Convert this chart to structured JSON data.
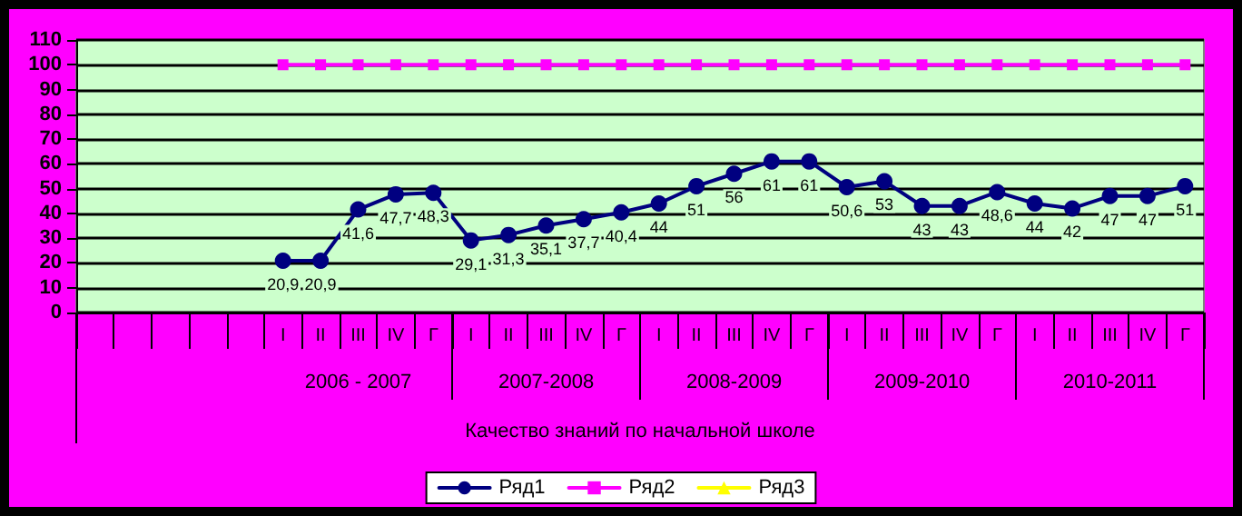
{
  "chart_data": {
    "type": "line",
    "xlabel": "Качество знаний по начальной школе",
    "categories": [
      null,
      null,
      null,
      null,
      null,
      "I",
      "II",
      "III",
      "IV",
      "Г",
      "I",
      "II",
      "III",
      "IV",
      "Г",
      "I",
      "II",
      "III",
      "IV",
      "Г",
      "I",
      "II",
      "III",
      "IV",
      "Г",
      "I",
      "II",
      "III",
      "IV",
      "Г"
    ],
    "annotations": [
      "2006 - 2007",
      "2007-2008",
      "2008-2009",
      "2009-2010",
      "2010-2011"
    ],
    "series": [
      {
        "name": "Ряд1",
        "color": "#000080",
        "marker": "circle",
        "value_labels": [
          null,
          null,
          null,
          null,
          null,
          "20,9",
          "20,9",
          "41,6",
          "47,7",
          "48,3",
          "29,1",
          "31,3",
          "35,1",
          "37,7",
          "40,4",
          "44",
          "51",
          "56",
          "61",
          "61",
          "50,6",
          "53",
          "43",
          "43",
          "48,6",
          "44",
          "42",
          "47",
          "47",
          "51"
        ],
        "values": [
          null,
          null,
          null,
          null,
          null,
          20.9,
          20.9,
          41.6,
          47.7,
          48.3,
          29.1,
          31.3,
          35.1,
          37.7,
          40.4,
          44,
          51,
          56,
          61,
          61,
          50.6,
          53,
          43,
          43,
          48.6,
          44,
          42,
          47,
          47,
          51
        ]
      },
      {
        "name": "Ряд2",
        "color": "#ff00ff",
        "marker": "square",
        "values": [
          null,
          null,
          null,
          null,
          null,
          100,
          100,
          100,
          100,
          100,
          100,
          100,
          100,
          100,
          100,
          100,
          100,
          100,
          100,
          100,
          100,
          100,
          100,
          100,
          100,
          100,
          100,
          100,
          100,
          100
        ]
      },
      {
        "name": "Ряд3",
        "color": "#ffff00",
        "marker": "triangle",
        "values": [
          null,
          null,
          null,
          null,
          null,
          null,
          null,
          null,
          null,
          null,
          null,
          null,
          null,
          null,
          null,
          null,
          null,
          null,
          null,
          null,
          null,
          null,
          null,
          null,
          null,
          null,
          null,
          null,
          null,
          null
        ]
      }
    ],
    "ylim": [
      0,
      110
    ],
    "yticks": [
      0,
      10,
      20,
      30,
      40,
      50,
      60,
      70,
      80,
      90,
      100,
      110
    ],
    "grid": "y",
    "legend": "bottom"
  }
}
